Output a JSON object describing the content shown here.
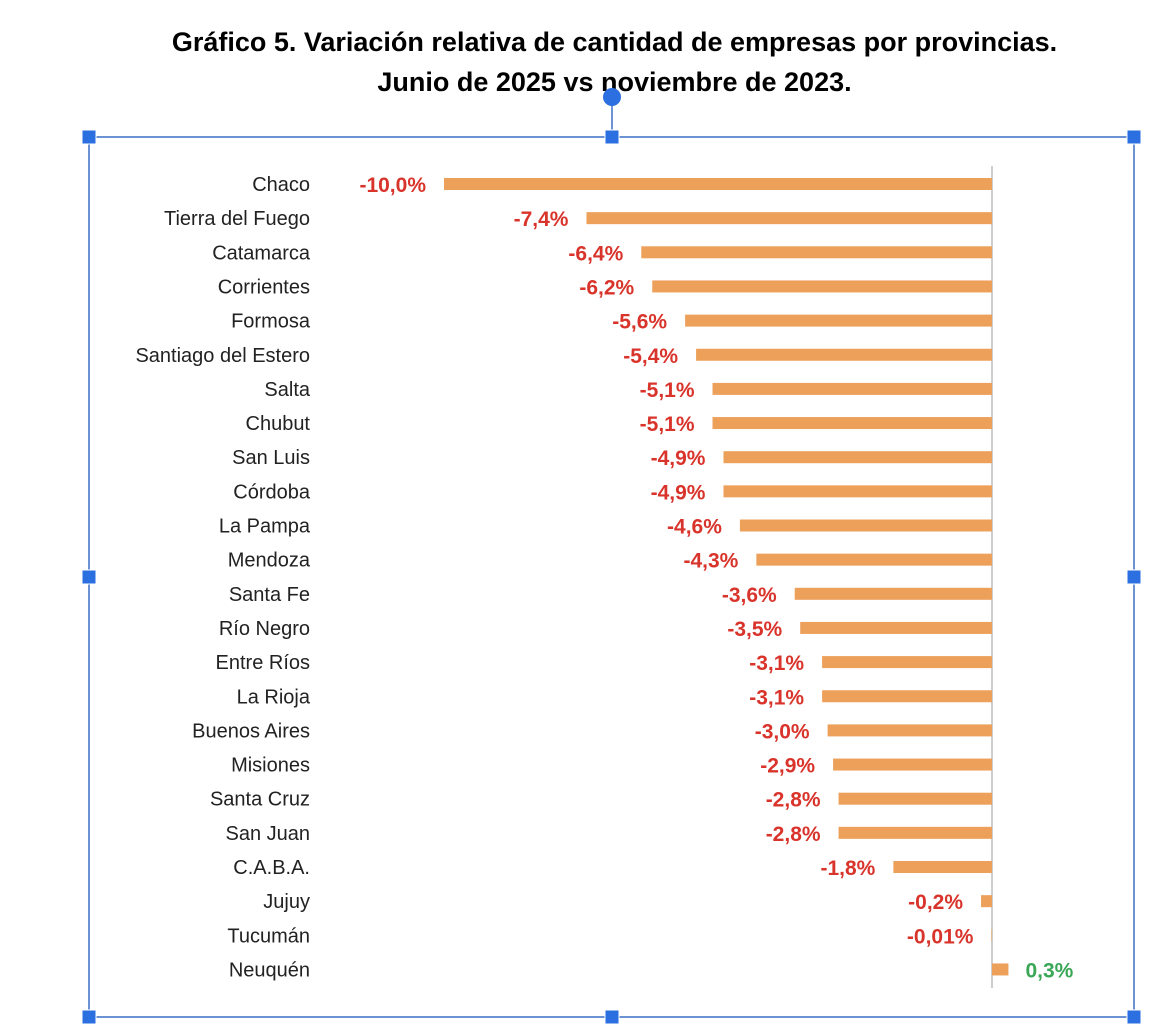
{
  "chart_data": {
    "type": "bar",
    "orientation": "horizontal",
    "title": "Gráfico 5. Variación relativa de cantidad de empresas por provincias.",
    "subtitle": "Junio de 2025 vs noviembre de 2023.",
    "categories": [
      "Chaco",
      "Tierra del Fuego",
      "Catamarca",
      "Corrientes",
      "Formosa",
      "Santiago del Estero",
      "Salta",
      "Chubut",
      "San Luis",
      "Córdoba",
      "La Pampa",
      "Mendoza",
      "Santa Fe",
      "Río Negro",
      "Entre Ríos",
      "La Rioja",
      "Buenos Aires",
      "Misiones",
      "Santa Cruz",
      "San Juan",
      "C.A.B.A.",
      "Jujuy",
      "Tucumán",
      "Neuquén"
    ],
    "values": [
      -10.0,
      -7.4,
      -6.4,
      -6.2,
      -5.6,
      -5.4,
      -5.1,
      -5.1,
      -4.9,
      -4.9,
      -4.6,
      -4.3,
      -3.6,
      -3.5,
      -3.1,
      -3.1,
      -3.0,
      -2.9,
      -2.8,
      -2.8,
      -1.8,
      -0.2,
      -0.01,
      0.3
    ],
    "data_labels": [
      "-10,0%",
      "-7,4%",
      "-6,4%",
      "-6,2%",
      "-5,6%",
      "-5,4%",
      "-5,1%",
      "-5,1%",
      "-4,9%",
      "-4,9%",
      "-4,6%",
      "-4,3%",
      "-3,6%",
      "-3,5%",
      "-3,1%",
      "-3,1%",
      "-3,0%",
      "-2,9%",
      "-2,8%",
      "-2,8%",
      "-1,8%",
      "-0,2%",
      "-0,01%",
      "0,3%"
    ],
    "xlabel": "",
    "ylabel": "",
    "xlim": [
      -10.0,
      0.4
    ],
    "grid": false,
    "legend": "none",
    "colors": {
      "bar": "#eda05a",
      "negative_label": "#d9342b",
      "positive_label": "#3aa757"
    }
  }
}
